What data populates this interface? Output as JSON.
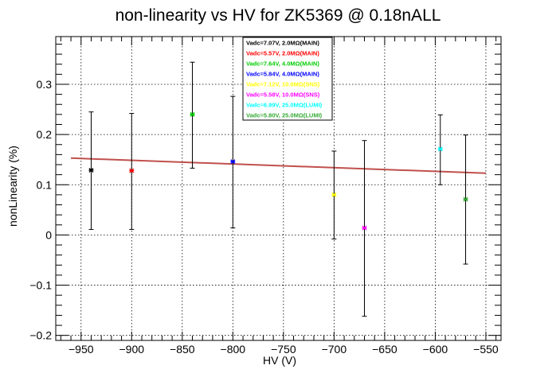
{
  "chart_data": {
    "type": "scatter",
    "title": "non-linearity vs HV for ZK5369 @ 0.18nALL",
    "xlabel": "HV (V)",
    "ylabel": "nonLinearity (%)",
    "xlim": [
      -975,
      -535
    ],
    "ylim": [
      -0.21,
      0.395
    ],
    "x_ticks": [
      -950,
      -900,
      -850,
      -800,
      -750,
      -700,
      -650,
      -600,
      -550
    ],
    "y_ticks": [
      -0.2,
      -0.1,
      0,
      0.1,
      0.2,
      0.3
    ],
    "x_tick_labels": [
      "−950",
      "−900",
      "−850",
      "−800",
      "−750",
      "−700",
      "−650",
      "−600",
      "−550"
    ],
    "y_tick_labels": [
      "−0.2",
      "−0.1",
      "0",
      "0.1",
      "0.2",
      "0.3"
    ],
    "grid": true,
    "legend_position": "top-center",
    "series": [
      {
        "name": "Vadc=7.07V, 2.0MΩ(MAIN)",
        "color": "#000000",
        "x": -940,
        "y": 0.129,
        "yerr_low": 0.011,
        "yerr_high": 0.245
      },
      {
        "name": "Vadc=5.57V, 2.0MΩ(MAIN)",
        "color": "#ff0000",
        "x": -900,
        "y": 0.128,
        "yerr_low": 0.011,
        "yerr_high": 0.242
      },
      {
        "name": "Vadc=7.64V, 4.0MΩ(MAIN)",
        "color": "#00cc00",
        "x": -840,
        "y": 0.24,
        "yerr_low": 0.133,
        "yerr_high": 0.344
      },
      {
        "name": "Vadc=5.84V, 4.0MΩ(MAIN)",
        "color": "#0000ff",
        "x": -800,
        "y": 0.146,
        "yerr_low": 0.014,
        "yerr_high": 0.276
      },
      {
        "name": "Vadc=7.12V, 10.0MΩ(SNS)",
        "color": "#ffff00",
        "x": -700,
        "y": 0.08,
        "yerr_low": -0.008,
        "yerr_high": 0.167
      },
      {
        "name": "Vadc=5.58V, 10.0MΩ(SNS)",
        "color": "#ff00ff",
        "x": -670,
        "y": 0.014,
        "yerr_low": -0.162,
        "yerr_high": 0.188
      },
      {
        "name": "Vadc=6.99V, 25.0MΩ(LUMI)",
        "color": "#00ffff",
        "x": -595,
        "y": 0.171,
        "yerr_low": 0.1,
        "yerr_high": 0.239
      },
      {
        "name": "Vadc=5.80V, 25.0MΩ(LUMI)",
        "color": "#33aa33",
        "x": -570,
        "y": 0.071,
        "yerr_low": -0.058,
        "yerr_high": 0.199
      }
    ],
    "fit": {
      "color": "#c0504d",
      "x": [
        -960,
        -550
      ],
      "y": [
        0.153,
        0.123
      ]
    }
  }
}
